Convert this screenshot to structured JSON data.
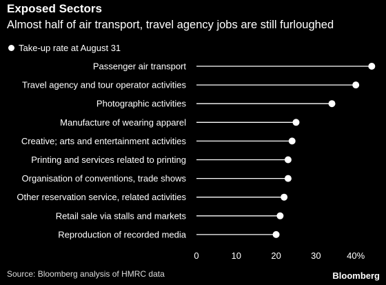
{
  "chart_data": {
    "type": "lollipop",
    "title": "Exposed Sectors",
    "subtitle": "Almost half of air transport, travel agency jobs are still furloughed",
    "legend": "Take-up rate at August 31",
    "categories": [
      "Passenger air transport",
      "Travel agency and tour operator activities",
      "Photographic activities",
      "Manufacture of wearing apparel",
      "Creative; arts and entertainment activities",
      "Printing and services related to printing",
      "Organisation of conventions, trade shows",
      "Other reservation service, related activities",
      "Retail sale via stalls and markets",
      "Reproduction of recorded media"
    ],
    "values": [
      44,
      40,
      34,
      25,
      24,
      23,
      23,
      22,
      21,
      20
    ],
    "xlim": [
      0,
      44
    ],
    "xticks": [
      "0",
      "10",
      "20",
      "30",
      "40%"
    ],
    "xtick_values": [
      0,
      10,
      20,
      30,
      40
    ],
    "line_color": "#ffffff",
    "dot_color": "#ffffff",
    "background": "#000000"
  },
  "source": "Source: Bloomberg analysis of HMRC data",
  "brand": "Bloomberg"
}
